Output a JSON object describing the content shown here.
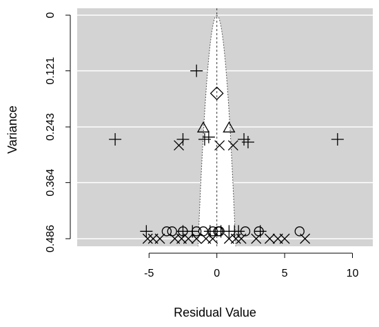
{
  "chart_data": {
    "type": "scatter",
    "subtype": "funnel plot",
    "xlabel": "Residual Value",
    "ylabel": "Variance",
    "xlim": [
      -10.3,
      11.5
    ],
    "ylim": [
      0.486,
      0
    ],
    "x_ticks": [
      -5,
      0,
      5,
      10
    ],
    "x_tick_labels": [
      "-5",
      "0",
      "5",
      "10"
    ],
    "y_ticks": [
      0,
      0.121,
      0.243,
      0.364,
      0.486
    ],
    "y_tick_labels": [
      "0",
      "0.121",
      "0.243",
      "0.364",
      "0.486"
    ],
    "grid": true,
    "background_color": "#d3d3d3",
    "funnel_color": "#ffffff",
    "funnel_bound_z": 1.96,
    "series": [
      {
        "marker": "plus",
        "points": [
          [
            -1.5,
            0.121
          ],
          [
            -7.5,
            0.27
          ],
          [
            -2.5,
            0.27
          ],
          [
            -0.9,
            0.27
          ],
          [
            -0.6,
            0.265
          ],
          [
            2.0,
            0.27
          ],
          [
            8.9,
            0.27
          ],
          [
            2.3,
            0.276
          ],
          [
            -5.2,
            0.47
          ],
          [
            -2.5,
            0.47
          ],
          [
            -1.8,
            0.47
          ],
          [
            -0.5,
            0.47
          ],
          [
            0.3,
            0.47
          ],
          [
            0.9,
            0.47
          ],
          [
            1.3,
            0.47
          ],
          [
            1.6,
            0.47
          ],
          [
            3.2,
            0.47
          ]
        ]
      },
      {
        "marker": "circle",
        "points": [
          [
            -3.7,
            0.47
          ],
          [
            -3.3,
            0.47
          ],
          [
            -2.5,
            0.47
          ],
          [
            -1.5,
            0.47
          ],
          [
            -1.0,
            0.47
          ],
          [
            -0.3,
            0.47
          ],
          [
            0.1,
            0.47
          ],
          [
            0.2,
            0.47
          ],
          [
            2.1,
            0.47
          ],
          [
            3.1,
            0.47
          ],
          [
            6.1,
            0.47
          ]
        ]
      },
      {
        "marker": "cross",
        "points": [
          [
            -2.8,
            0.283
          ],
          [
            0.2,
            0.283
          ],
          [
            1.2,
            0.283
          ],
          [
            -5.1,
            0.486
          ],
          [
            -4.7,
            0.486
          ],
          [
            -4.2,
            0.486
          ],
          [
            -3.1,
            0.486
          ],
          [
            -2.6,
            0.486
          ],
          [
            -2.1,
            0.486
          ],
          [
            -1.5,
            0.486
          ],
          [
            -0.8,
            0.486
          ],
          [
            -0.3,
            0.486
          ],
          [
            0.9,
            0.486
          ],
          [
            1.4,
            0.486
          ],
          [
            1.8,
            0.486
          ],
          [
            2.9,
            0.486
          ],
          [
            3.9,
            0.486
          ],
          [
            4.5,
            0.486
          ],
          [
            5.0,
            0.486
          ],
          [
            6.5,
            0.486
          ]
        ]
      },
      {
        "marker": "triangle",
        "points": [
          [
            -1.0,
            0.245
          ],
          [
            0.9,
            0.245
          ]
        ]
      },
      {
        "marker": "diamond",
        "points": [
          [
            0.0,
            0.17
          ]
        ]
      }
    ]
  }
}
